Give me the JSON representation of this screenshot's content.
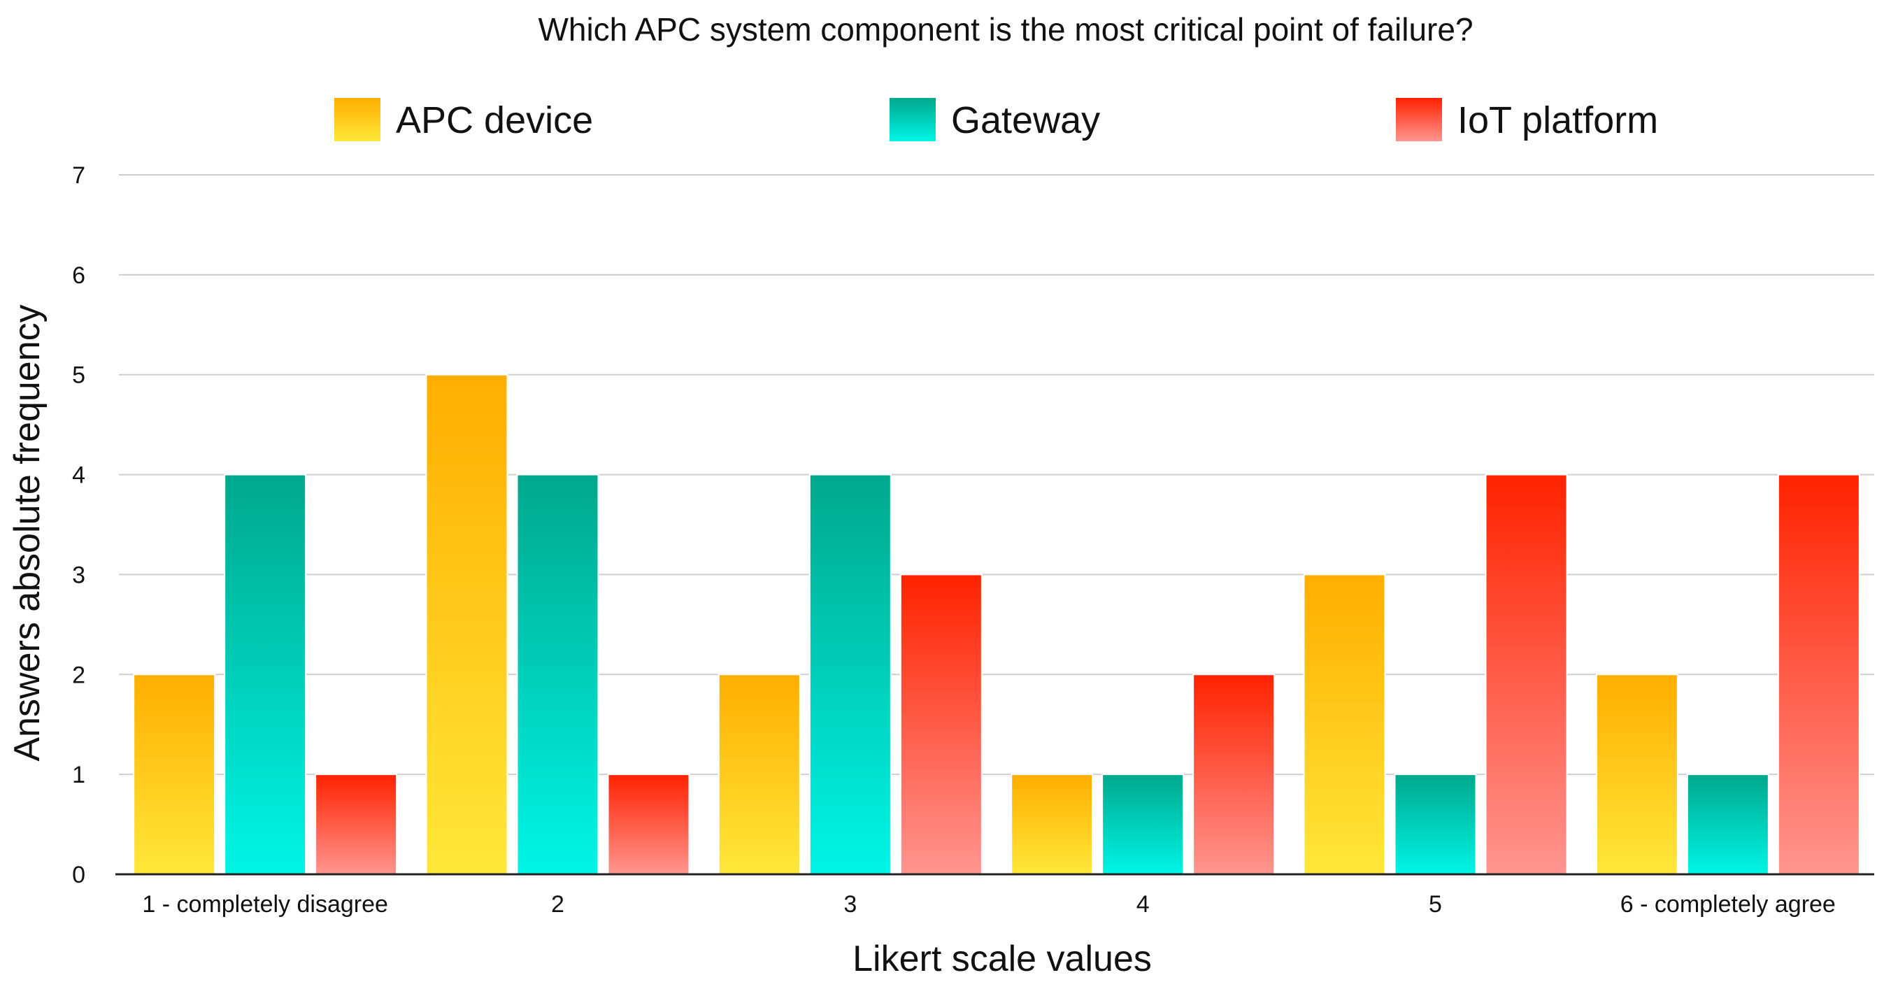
{
  "chart_data": {
    "type": "bar",
    "title": "Which APC system component is the most critical point of failure?",
    "xlabel": "Likert scale values",
    "ylabel": "Answers absolute frequency",
    "ylim": [
      0,
      7
    ],
    "yticks": [
      0,
      1,
      2,
      3,
      4,
      5,
      6,
      7
    ],
    "grid": true,
    "legend_position": "top",
    "categories": [
      "1 - completely disagree",
      "2",
      "3",
      "4",
      "5",
      "6 -  completely agree"
    ],
    "series": [
      {
        "name": "APC device",
        "values": [
          2,
          5,
          2,
          1,
          3,
          2
        ],
        "color_top": "#ffae00",
        "color_bottom": "#ffe83a"
      },
      {
        "name": "Gateway",
        "values": [
          4,
          4,
          4,
          1,
          1,
          1
        ],
        "color_top": "#00a88c",
        "color_bottom": "#00f5e6"
      },
      {
        "name": "IoT platform",
        "values": [
          1,
          1,
          3,
          2,
          4,
          4
        ],
        "color_top": "#ff2200",
        "color_bottom": "#ff9590"
      }
    ]
  }
}
